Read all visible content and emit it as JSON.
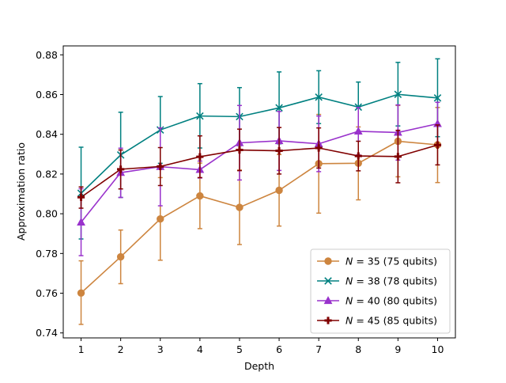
{
  "chart_data": {
    "type": "line",
    "title": "",
    "xlabel": "Depth",
    "ylabel": "Approximation ratio",
    "x": [
      1,
      2,
      3,
      4,
      5,
      6,
      7,
      8,
      9,
      10
    ],
    "xlim": [
      0.55,
      10.45
    ],
    "ylim": [
      0.7375,
      0.8845
    ],
    "xticks": [
      1,
      2,
      3,
      4,
      5,
      6,
      7,
      8,
      9,
      10
    ],
    "yticks": [
      0.74,
      0.76,
      0.78,
      0.8,
      0.82,
      0.84,
      0.86,
      0.88
    ],
    "ytick_labels": [
      "0.74",
      "0.76",
      "0.78",
      "0.80",
      "0.82",
      "0.84",
      "0.86",
      "0.88"
    ],
    "grid": false,
    "legend_position": "lower-right",
    "series": [
      {
        "name": "N = 35 (75 qubits)",
        "legend_var": "N",
        "legend_eq": " = 35 (75 qubits)",
        "color": "#cd853f",
        "marker": "circle",
        "values": [
          0.7601,
          0.7783,
          0.7974,
          0.809,
          0.8032,
          0.8118,
          0.8252,
          0.8254,
          0.8365,
          0.8347
        ],
        "err_low": [
          0.7443,
          0.7648,
          0.7766,
          0.7925,
          0.7845,
          0.7938,
          0.8003,
          0.807,
          0.8186,
          0.8157
        ],
        "err_high": [
          0.7763,
          0.7918,
          0.8182,
          0.8255,
          0.822,
          0.8298,
          0.85,
          0.8437,
          0.8545,
          0.8535
        ]
      },
      {
        "name": "N = 38 (78 qubits)",
        "legend_var": "N",
        "legend_eq": " = 38 (78 qubits)",
        "color": "#008080",
        "marker": "x",
        "values": [
          0.8103,
          0.8296,
          0.8422,
          0.8492,
          0.8489,
          0.8533,
          0.8587,
          0.8537,
          0.8601,
          0.8583
        ],
        "err_low": [
          0.7873,
          0.8082,
          0.8254,
          0.8331,
          0.8343,
          0.8352,
          0.8454,
          0.8411,
          0.8442,
          0.8388
        ],
        "err_high": [
          0.8335,
          0.8511,
          0.859,
          0.8655,
          0.8635,
          0.8714,
          0.872,
          0.8663,
          0.8762,
          0.878
        ]
      },
      {
        "name": "N = 40 (80 qubits)",
        "legend_var": "N",
        "legend_eq": " = 40 (80 qubits)",
        "color": "#9932cc",
        "marker": "triangle",
        "values": [
          0.7957,
          0.8207,
          0.8237,
          0.8222,
          0.8357,
          0.8367,
          0.8352,
          0.8415,
          0.8409,
          0.8453
        ],
        "err_low": [
          0.7789,
          0.8082,
          0.804,
          0.818,
          0.817,
          0.8218,
          0.8212,
          0.8296,
          0.827,
          0.8345
        ],
        "err_high": [
          0.8126,
          0.833,
          0.8432,
          0.8265,
          0.8545,
          0.8515,
          0.8492,
          0.8535,
          0.8548,
          0.8561
        ]
      },
      {
        "name": "N = 45 (85 qubits)",
        "legend_var": "N",
        "legend_eq": " = 45 (85 qubits)",
        "color": "#800000",
        "marker": "plus",
        "values": [
          0.8083,
          0.8224,
          0.8238,
          0.8287,
          0.8321,
          0.8317,
          0.8331,
          0.8291,
          0.8288,
          0.8346
        ],
        "err_low": [
          0.8028,
          0.8125,
          0.8142,
          0.8182,
          0.8217,
          0.82,
          0.823,
          0.8216,
          0.8156,
          0.8246
        ],
        "err_high": [
          0.8135,
          0.8321,
          0.8333,
          0.8392,
          0.8426,
          0.8434,
          0.8432,
          0.8365,
          0.842,
          0.8447
        ]
      }
    ]
  }
}
